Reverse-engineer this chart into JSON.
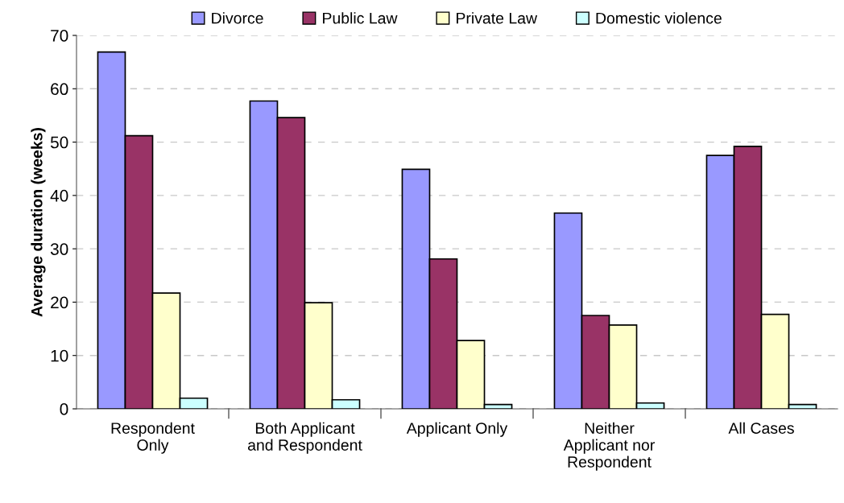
{
  "chart_data": {
    "type": "bar",
    "ylabel": "Average duration (weeks)",
    "categories": [
      "Respondent\nOnly",
      "Both Applicant\nand Respondent",
      "Applicant Only",
      "Neither\nApplicant nor\nRespondent",
      "All Cases"
    ],
    "series": [
      {
        "name": "Divorce",
        "color": "#9999ff",
        "values": [
          66.9,
          57.7,
          44.9,
          36.7,
          47.5
        ]
      },
      {
        "name": "Public Law",
        "color": "#993366",
        "values": [
          51.2,
          54.6,
          28.1,
          17.5,
          49.2
        ]
      },
      {
        "name": "Private Law",
        "color": "#ffffcc",
        "values": [
          21.7,
          19.9,
          12.8,
          15.7,
          17.7
        ]
      },
      {
        "name": "Domestic violence",
        "color": "#ccffff",
        "values": [
          2.0,
          1.7,
          0.8,
          1.1,
          0.8
        ]
      }
    ],
    "ylim": [
      0,
      70
    ],
    "yticks": [
      0,
      10,
      20,
      30,
      40,
      50,
      60,
      70
    ],
    "grid": "y",
    "legend": "top"
  }
}
